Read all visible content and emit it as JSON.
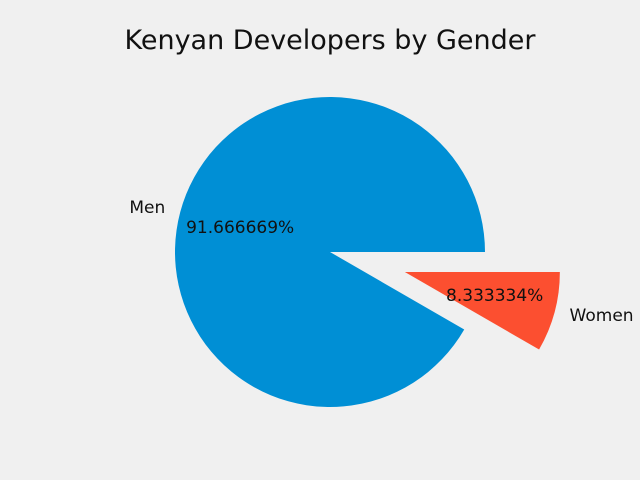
{
  "chart_data": {
    "type": "pie",
    "title": "Kenyan Developers by Gender",
    "categories": [
      "Men",
      "Women"
    ],
    "values": [
      91.666669,
      8.333334
    ],
    "percent_labels": [
      "91.666669%",
      "8.333334%"
    ],
    "colors": [
      "#008fd5",
      "#fc4f30"
    ],
    "exploded": [
      false,
      true
    ],
    "start_angle_deg": 0,
    "direction": "counterclockwise"
  },
  "colors": {
    "background": "#f0f0f0",
    "text": "#111111"
  }
}
